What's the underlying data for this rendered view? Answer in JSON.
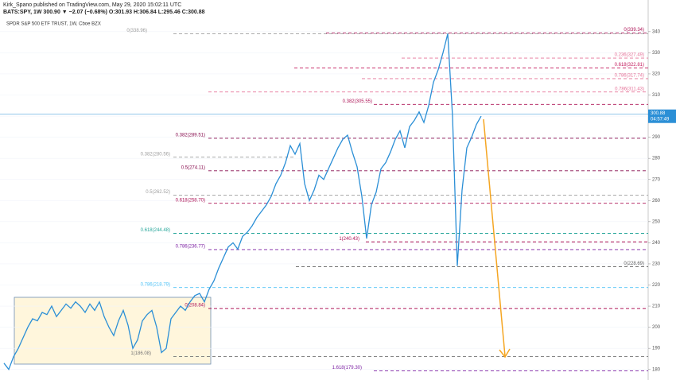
{
  "chart_data": {
    "type": "line",
    "subtitle": "Kirk_Spano published on TradingView.com, May 29, 2020 15:02:11 UTC",
    "symbol_info": "BATS:SPY, 1W  300.90  ▼ −2.07 (−0.68%)  O:301.93  H:306.84  L:295.46  C:300.88",
    "title": "SPDR S&P 500 ETF TRUST, 1W, Cboe BZX",
    "categories": [
      null,
      null,
      null,
      null,
      null,
      null,
      null,
      null,
      null,
      null,
      null,
      null,
      null,
      null,
      null,
      null,
      null,
      null,
      null,
      null,
      null,
      null,
      null,
      null,
      null,
      null,
      null,
      null,
      null,
      null,
      null,
      null,
      null,
      null,
      null,
      null,
      null,
      null,
      null,
      null,
      null,
      null,
      null,
      null,
      null,
      null,
      null,
      null,
      null,
      null,
      null,
      null,
      null,
      null,
      null,
      null,
      null,
      null,
      null,
      null,
      null,
      null,
      null,
      null,
      null,
      null,
      null,
      null,
      null,
      null,
      null,
      null,
      null,
      null,
      null,
      null,
      null,
      null,
      null,
      null,
      null,
      null,
      null,
      null,
      null,
      null,
      null,
      null,
      null,
      null,
      null,
      null,
      null,
      null,
      null,
      null,
      null,
      null,
      null,
      null,
      null
    ],
    "series": [
      {
        "name": "SPY",
        "color": "#2b8fd6",
        "values": [
          183,
          180,
          186,
          190,
          195,
          200,
          204,
          203,
          207,
          206,
          210,
          205,
          208,
          211,
          209,
          212,
          210,
          207,
          211,
          208,
          212,
          205,
          200,
          196,
          203,
          208,
          201,
          190,
          194,
          203,
          206,
          208,
          200,
          188,
          190,
          204,
          207,
          210,
          208,
          212,
          215,
          216,
          212,
          218,
          222,
          228,
          233,
          238,
          240,
          237,
          243,
          245,
          248,
          252,
          255,
          258,
          262,
          268,
          272,
          278,
          286,
          282,
          287,
          268,
          260,
          265,
          272,
          270,
          275,
          280,
          285,
          289,
          291,
          283,
          276,
          262,
          242,
          258,
          264,
          275,
          278,
          283,
          289,
          293,
          285,
          295,
          298,
          302,
          297,
          305,
          316,
          322,
          330,
          339,
          300,
          229,
          265,
          285,
          290,
          296,
          300
        ]
      }
    ],
    "last_price": 300.88,
    "countdown": "04:57:49",
    "ylim": [
      175,
      355
    ],
    "yticks": [
      180,
      190,
      200,
      210,
      220,
      230,
      240,
      250,
      260,
      270,
      280,
      290,
      300,
      310,
      320,
      330,
      340
    ],
    "fib_levels": [
      {
        "label": "0(338.96)",
        "value": 338.96,
        "color": "#9e9e9e"
      },
      {
        "label": "0(339.34)",
        "value": 339.34,
        "color": "#ad1457"
      },
      {
        "label": "0.236(327.49)",
        "value": 327.49,
        "color": "#e57399"
      },
      {
        "label": "0.618(322.81)",
        "value": 322.81,
        "color": "#c2185b"
      },
      {
        "label": "0.786(317.74)",
        "value": 317.74,
        "color": "#e57399"
      },
      {
        "label": "0.786(311.43)",
        "value": 311.43,
        "color": "#e57399"
      },
      {
        "label": "0.382(305.55)",
        "value": 305.55,
        "color": "#ad1457"
      },
      {
        "label": "0.382(289.51)",
        "value": 289.51,
        "color": "#880e4f"
      },
      {
        "label": "0.382(280.56)",
        "value": 280.56,
        "color": "#9e9e9e"
      },
      {
        "label": "0.5(274.11)",
        "value": 274.11,
        "color": "#880e4f"
      },
      {
        "label": "0.5(262.52)",
        "value": 262.52,
        "color": "#9e9e9e"
      },
      {
        "label": "0.618(258.70)",
        "value": 258.7,
        "color": "#ad1457"
      },
      {
        "label": "0.618(244.48)",
        "value": 244.48,
        "color": "#26a69a"
      },
      {
        "label": "1(240.43)",
        "value": 240.43,
        "color": "#ad1457"
      },
      {
        "label": "0.786(236.77)",
        "value": 236.77,
        "color": "#7b1fa2"
      },
      {
        "label": "0(228.69)",
        "value": 228.69,
        "color": "#616161"
      },
      {
        "label": "0.786(218.79)",
        "value": 218.79,
        "color": "#4fc3f7"
      },
      {
        "label": "0(208.84)",
        "value": 208.84,
        "color": "#ad1457"
      },
      {
        "label": "1(186.08)",
        "value": 186.08,
        "color": "#757575"
      },
      {
        "label": "1.618(179.30)",
        "value": 179.3,
        "color": "#7b1fa2"
      }
    ]
  }
}
